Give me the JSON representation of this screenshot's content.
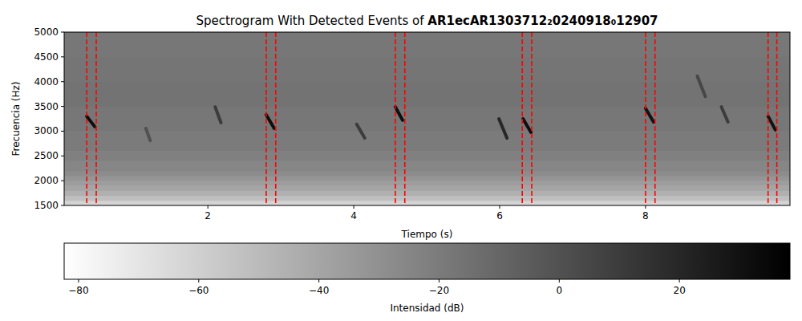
{
  "chart_data": {
    "type": "spectrogram",
    "title": "Spectrogram With Detected Events of AR1ecAR1303712₂0240918₀12907",
    "x_label": "Tiempo (s)",
    "y_label": "Frecuencia (Hz)",
    "xlim": [
      0.03,
      9.98
    ],
    "xticks": [
      2,
      4,
      6,
      8
    ],
    "ylim": [
      1500,
      5000
    ],
    "yticks": [
      1500,
      2000,
      2500,
      3000,
      3500,
      4000,
      4500,
      5000
    ],
    "background": {
      "freq_edges": [
        1500,
        1600,
        1700,
        1800,
        1900,
        2000,
        2100,
        2200,
        2400,
        2600,
        3000,
        3500,
        4000,
        4500,
        5000
      ],
      "values": [
        -62,
        -52,
        -45,
        -40,
        -36,
        -32,
        -28,
        -25,
        -22,
        -20,
        -18,
        -16,
        -17,
        -18
      ]
    },
    "calls": {
      "t_start": [
        0.34,
        1.15,
        2.1,
        2.8,
        4.04,
        4.57,
        5.99,
        6.32,
        8.0,
        8.71,
        9.04,
        9.68
      ],
      "t_end": [
        0.45,
        1.21,
        2.18,
        2.91,
        4.15,
        4.67,
        6.1,
        6.43,
        8.11,
        8.82,
        9.13,
        9.78
      ],
      "f_start": [
        3300,
        3056,
        3490,
        3330,
        3140,
        3490,
        3250,
        3250,
        3460,
        4110,
        3490,
        3300
      ],
      "f_end": [
        3090,
        2810,
        3170,
        3056,
        2860,
        3220,
        2860,
        2975,
        3185,
        3700,
        3185,
        3025
      ],
      "values": [
        32,
        0,
        10,
        32,
        10,
        32,
        20,
        32,
        30,
        5,
        10,
        30
      ]
    },
    "events": {
      "color": "#ff0000",
      "starts": [
        0.34,
        2.8,
        4.57,
        6.31,
        8.0,
        9.68
      ],
      "ends": [
        0.47,
        2.93,
        4.7,
        6.44,
        8.13,
        9.8
      ]
    },
    "colorbar": {
      "label": "Intensidad (dB)",
      "range": [
        -82.4,
        38.4
      ],
      "ticks": [
        {
          "value": -80,
          "label": "−80"
        },
        {
          "value": -60,
          "label": "−60"
        },
        {
          "value": -40,
          "label": "−40"
        },
        {
          "value": -20,
          "label": "−20"
        },
        0,
        20
      ]
    }
  }
}
